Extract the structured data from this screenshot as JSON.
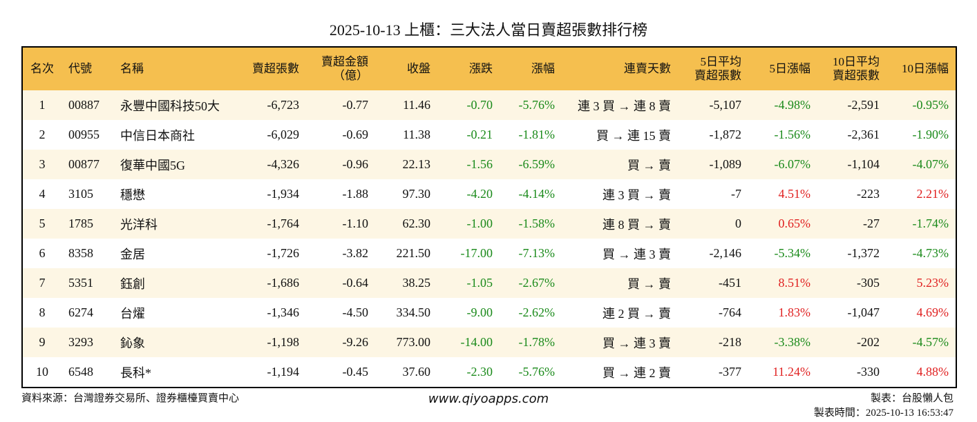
{
  "title": "2025-10-13 上櫃：三大法人當日賣超張數排行榜",
  "table": {
    "header": [
      "名次",
      "代號",
      "名稱",
      "賣超張數",
      "賣超金額\n（億）",
      "收盤",
      "漲跌",
      "漲幅",
      "連賣天數",
      "5日平均\n賣超張數",
      "5日漲幅",
      "10日平均\n賣超張數",
      "10日漲幅"
    ],
    "rows": [
      [
        "1",
        "00887",
        "永豐中國科技50大",
        "-6,723",
        "-0.77",
        "11.46",
        "-0.70",
        "-5.76%",
        "連 3 買 → 連 8 賣",
        "-5,107",
        "-4.98%",
        "-2,591",
        "-0.95%"
      ],
      [
        "2",
        "00955",
        "中信日本商社",
        "-6,029",
        "-0.69",
        "11.38",
        "-0.21",
        "-1.81%",
        "買 → 連 15 賣",
        "-1,872",
        "-1.56%",
        "-2,361",
        "-1.90%"
      ],
      [
        "3",
        "00877",
        "復華中國5G",
        "-4,326",
        "-0.96",
        "22.13",
        "-1.56",
        "-6.59%",
        "買 → 賣",
        "-1,089",
        "-6.07%",
        "-1,104",
        "-4.07%"
      ],
      [
        "4",
        "3105",
        "穩懋",
        "-1,934",
        "-1.88",
        "97.30",
        "-4.20",
        "-4.14%",
        "連 3 買 → 賣",
        "-7",
        "4.51%",
        "-223",
        "2.21%"
      ],
      [
        "5",
        "1785",
        "光洋科",
        "-1,764",
        "-1.10",
        "62.30",
        "-1.00",
        "-1.58%",
        "連 8 買 → 賣",
        "0",
        "0.65%",
        "-27",
        "-1.74%"
      ],
      [
        "6",
        "8358",
        "金居",
        "-1,726",
        "-3.82",
        "221.50",
        "-17.00",
        "-7.13%",
        "買 → 連 3 賣",
        "-2,146",
        "-5.34%",
        "-1,372",
        "-4.73%"
      ],
      [
        "7",
        "5351",
        "鈺創",
        "-1,686",
        "-0.64",
        "38.25",
        "-1.05",
        "-2.67%",
        "買 → 賣",
        "-451",
        "8.51%",
        "-305",
        "5.23%"
      ],
      [
        "8",
        "6274",
        "台燿",
        "-1,346",
        "-4.50",
        "334.50",
        "-9.00",
        "-2.62%",
        "連 2 買 → 賣",
        "-764",
        "1.83%",
        "-1,047",
        "4.69%"
      ],
      [
        "9",
        "3293",
        "鈊象",
        "-1,198",
        "-9.26",
        "773.00",
        "-14.00",
        "-1.78%",
        "買 → 連 3 賣",
        "-218",
        "-3.38%",
        "-202",
        "-4.57%"
      ],
      [
        "10",
        "6548",
        "長科*",
        "-1,194",
        "-0.45",
        "37.60",
        "-2.30",
        "-5.76%",
        "買 → 連 2 賣",
        "-377",
        "11.24%",
        "-330",
        "4.88%"
      ]
    ]
  },
  "footer": {
    "source": "資料來源：台灣證券交易所、證券櫃檯買賣中心",
    "website": "www.qiyoapps.com",
    "maker": "製表：台股懶人包",
    "time": "製表時間：2025-10-13 16:53:47"
  }
}
